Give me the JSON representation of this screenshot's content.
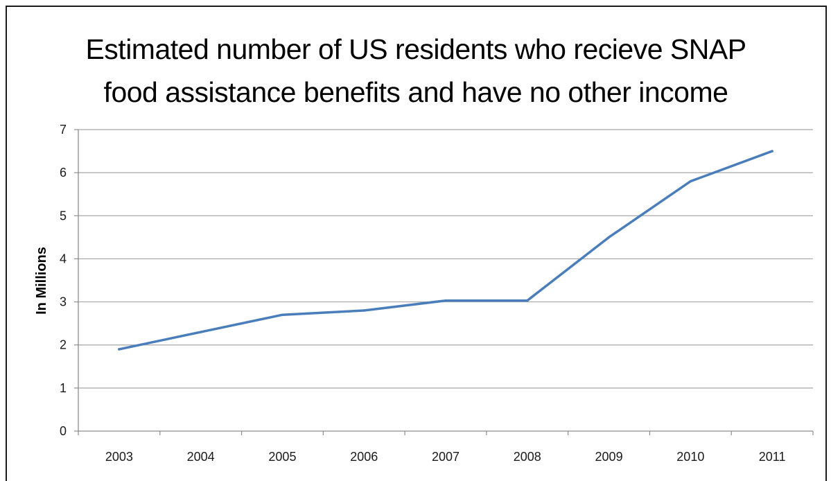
{
  "chart_data": {
    "type": "line",
    "title_lines": [
      "Estimated number of US residents who recieve SNAP",
      "food assistance benefits and have no other income"
    ],
    "xlabel": "",
    "ylabel": "In Millions",
    "categories": [
      "2003",
      "2004",
      "2005",
      "2006",
      "2007",
      "2008",
      "2009",
      "2010",
      "2011"
    ],
    "series": [
      {
        "values": [
          1.9,
          2.3,
          2.7,
          2.8,
          3.03,
          3.03,
          4.5,
          5.8,
          6.5
        ],
        "color": "#4a7ebb"
      }
    ],
    "ylim": [
      0,
      7
    ],
    "yticks": [
      0,
      1,
      2,
      3,
      4,
      5,
      6,
      7
    ],
    "grid": true,
    "legend": "none"
  }
}
